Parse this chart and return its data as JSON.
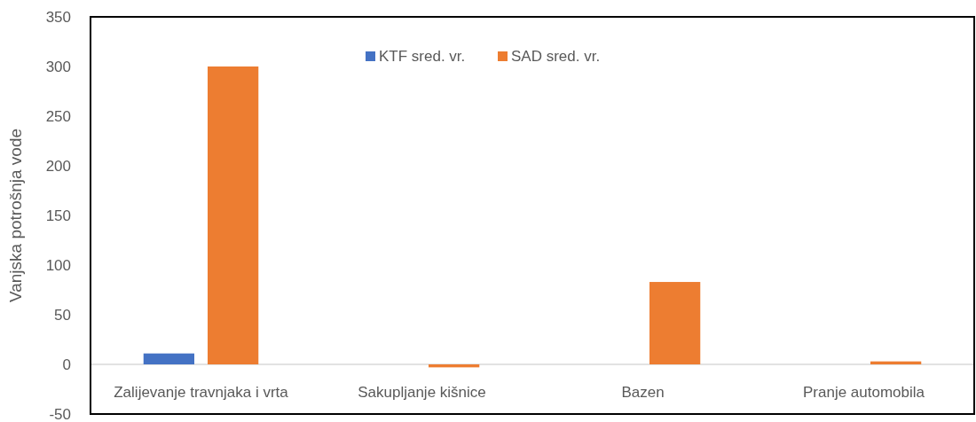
{
  "chart_data": {
    "type": "bar",
    "ylabel": "Vanjska potrošnja vode",
    "categories": [
      "Zalijevanje travnjaka i vrta",
      "Sakupljanje kišnice",
      "Bazen",
      "Pranje automobila"
    ],
    "series": [
      {
        "name": "KTF sred. vr.",
        "color": "#4472c4",
        "values": [
          11,
          0,
          0,
          0
        ]
      },
      {
        "name": "SAD sred. vr.",
        "color": "#ed7d31",
        "values": [
          300,
          -3,
          83,
          3
        ]
      }
    ],
    "ylim": [
      -50,
      350
    ],
    "yticks": [
      -50,
      0,
      50,
      100,
      150,
      200,
      250,
      300,
      350
    ],
    "ref_lines": [
      {
        "axis": "y",
        "value": 0,
        "color": "#d9d9d9"
      }
    ],
    "legend": "top"
  }
}
